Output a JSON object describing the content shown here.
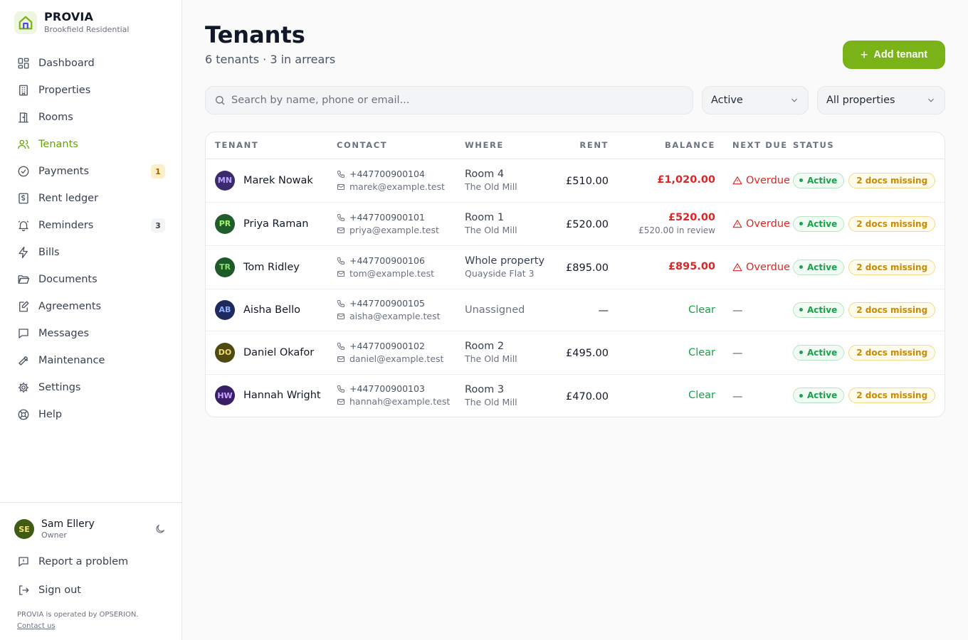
{
  "brand": {
    "name": "PROVIA",
    "subtitle": "Brookfield Residential"
  },
  "nav": [
    {
      "label": "Dashboard",
      "icon": "grid-icon",
      "active": false
    },
    {
      "label": "Properties",
      "icon": "building-icon",
      "active": false
    },
    {
      "label": "Rooms",
      "icon": "door-icon",
      "active": false
    },
    {
      "label": "Tenants",
      "icon": "users-icon",
      "active": true
    },
    {
      "label": "Payments",
      "icon": "check-circle-icon",
      "active": false,
      "badge": "1",
      "badge_style": "warn"
    },
    {
      "label": "Rent ledger",
      "icon": "ledger-icon",
      "active": false
    },
    {
      "label": "Reminders",
      "icon": "bell-icon",
      "active": false,
      "badge": "3",
      "badge_style": "neutral"
    },
    {
      "label": "Bills",
      "icon": "bolt-icon",
      "active": false
    },
    {
      "label": "Documents",
      "icon": "folder-icon",
      "active": false
    },
    {
      "label": "Agreements",
      "icon": "edit-doc-icon",
      "active": false
    },
    {
      "label": "Messages",
      "icon": "message-icon",
      "active": false
    },
    {
      "label": "Maintenance",
      "icon": "wrench-icon",
      "active": false
    },
    {
      "label": "Settings",
      "icon": "gear-icon",
      "active": false
    },
    {
      "label": "Help",
      "icon": "lifebuoy-icon",
      "active": false
    }
  ],
  "user": {
    "initials": "SE",
    "name": "Sam Ellery",
    "role": "Owner"
  },
  "footer": {
    "report": "Report a problem",
    "signout": "Sign out",
    "note": "PROVIA is operated by OPSERION.",
    "contact": "Contact us"
  },
  "page": {
    "title": "Tenants",
    "subtitle": "6 tenants · 3 in arrears",
    "add_button": "Add tenant"
  },
  "filters": {
    "search_placeholder": "Search by name, phone or email...",
    "status": "Active",
    "property": "All properties"
  },
  "table": {
    "columns": [
      "TENANT",
      "CONTACT",
      "WHERE",
      "RENT",
      "BALANCE",
      "NEXT DUE",
      "STATUS"
    ],
    "rows": [
      {
        "initials": "MN",
        "avatar_bg": "#3b2a6e",
        "avatar_fg": "#b9a4ff",
        "name": "Marek Nowak",
        "phone": "+447700900104",
        "email": "marek@example.test",
        "where": "Room 4",
        "where_sub": "The Old Mill",
        "rent": "£510.00",
        "balance": "£1,020.00",
        "balance_sub": "",
        "balance_state": "overdue",
        "next_due": "Overdue",
        "status": "Active",
        "docs": "2 docs missing"
      },
      {
        "initials": "PR",
        "avatar_bg": "#1f5e2b",
        "avatar_fg": "#a6f26b",
        "name": "Priya Raman",
        "phone": "+447700900101",
        "email": "priya@example.test",
        "where": "Room 1",
        "where_sub": "The Old Mill",
        "rent": "£520.00",
        "balance": "£520.00",
        "balance_sub": "£520.00 in review",
        "balance_state": "overdue",
        "next_due": "Overdue",
        "status": "Active",
        "docs": "2 docs missing"
      },
      {
        "initials": "TR",
        "avatar_bg": "#1e5a29",
        "avatar_fg": "#8ee06a",
        "name": "Tom Ridley",
        "phone": "+447700900106",
        "email": "tom@example.test",
        "where": "Whole property",
        "where_sub": "Quayside Flat 3",
        "rent": "£895.00",
        "balance": "£895.00",
        "balance_sub": "",
        "balance_state": "overdue",
        "next_due": "Overdue",
        "status": "Active",
        "docs": "2 docs missing"
      },
      {
        "initials": "AB",
        "avatar_bg": "#1e2a5e",
        "avatar_fg": "#8fb0ff",
        "name": "Aisha Bello",
        "phone": "+447700900105",
        "email": "aisha@example.test",
        "where": "Unassigned",
        "where_sub": "",
        "rent": "—",
        "balance": "Clear",
        "balance_sub": "",
        "balance_state": "clear",
        "next_due": "—",
        "status": "Active",
        "docs": "2 docs missing"
      },
      {
        "initials": "DO",
        "avatar_bg": "#4f4a12",
        "avatar_fg": "#f0dc6a",
        "name": "Daniel Okafor",
        "phone": "+447700900102",
        "email": "daniel@example.test",
        "where": "Room 2",
        "where_sub": "The Old Mill",
        "rent": "£495.00",
        "balance": "Clear",
        "balance_sub": "",
        "balance_state": "clear",
        "next_due": "—",
        "status": "Active",
        "docs": "2 docs missing"
      },
      {
        "initials": "HW",
        "avatar_bg": "#3a1f66",
        "avatar_fg": "#c9a6ff",
        "name": "Hannah Wright",
        "phone": "+447700900103",
        "email": "hannah@example.test",
        "where": "Room 3",
        "where_sub": "The Old Mill",
        "rent": "£470.00",
        "balance": "Clear",
        "balance_sub": "",
        "balance_state": "clear",
        "next_due": "—",
        "status": "Active",
        "docs": "2 docs missing"
      }
    ]
  },
  "colors": {
    "accent": "#7ab317",
    "accent_text": "#65a30d",
    "danger": "#dc2626",
    "success": "#16a34a",
    "warning": "#ca8a04"
  }
}
